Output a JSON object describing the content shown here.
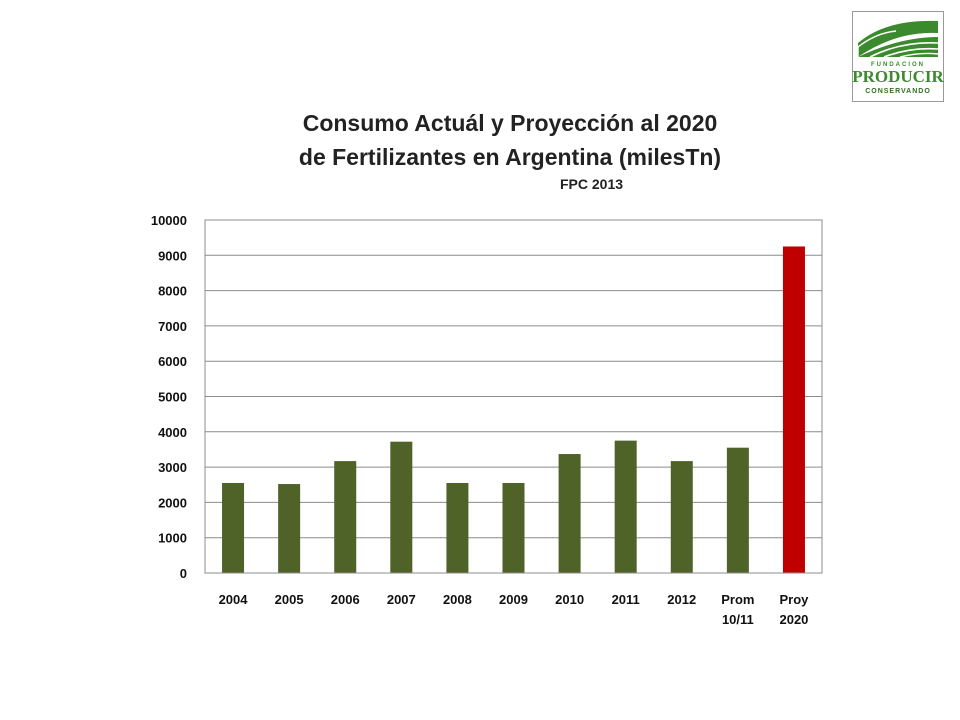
{
  "logo": {
    "top_text": "FUNDACION",
    "main_text": "PRODUCIR",
    "bottom_text": "CONSERVANDO",
    "colors": {
      "green": "#3c8a2e",
      "dark_green": "#2f6f24"
    }
  },
  "chart_data": {
    "type": "bar",
    "title_line1": "Consumo Actuál y Proyección al 2020",
    "title_line2": "de Fertilizantes en Argentina (milesTn)",
    "subtitle": "FPC 2013",
    "categories": [
      "2004",
      "2005",
      "2006",
      "2007",
      "2008",
      "2009",
      "2010",
      "2011",
      "2012",
      "Prom\n10/11",
      "Proy\n2020"
    ],
    "values": [
      2550,
      2520,
      3170,
      3720,
      2550,
      2550,
      3370,
      3750,
      3170,
      3550,
      9250
    ],
    "bar_colors": [
      "#4f6228",
      "#4f6228",
      "#4f6228",
      "#4f6228",
      "#4f6228",
      "#4f6228",
      "#4f6228",
      "#4f6228",
      "#4f6228",
      "#4f6228",
      "#c00000"
    ],
    "ylim": [
      0,
      10000
    ],
    "yticks": [
      0,
      1000,
      2000,
      3000,
      4000,
      5000,
      6000,
      7000,
      8000,
      9000,
      10000
    ],
    "grid": true,
    "xlabel": "",
    "ylabel": ""
  }
}
